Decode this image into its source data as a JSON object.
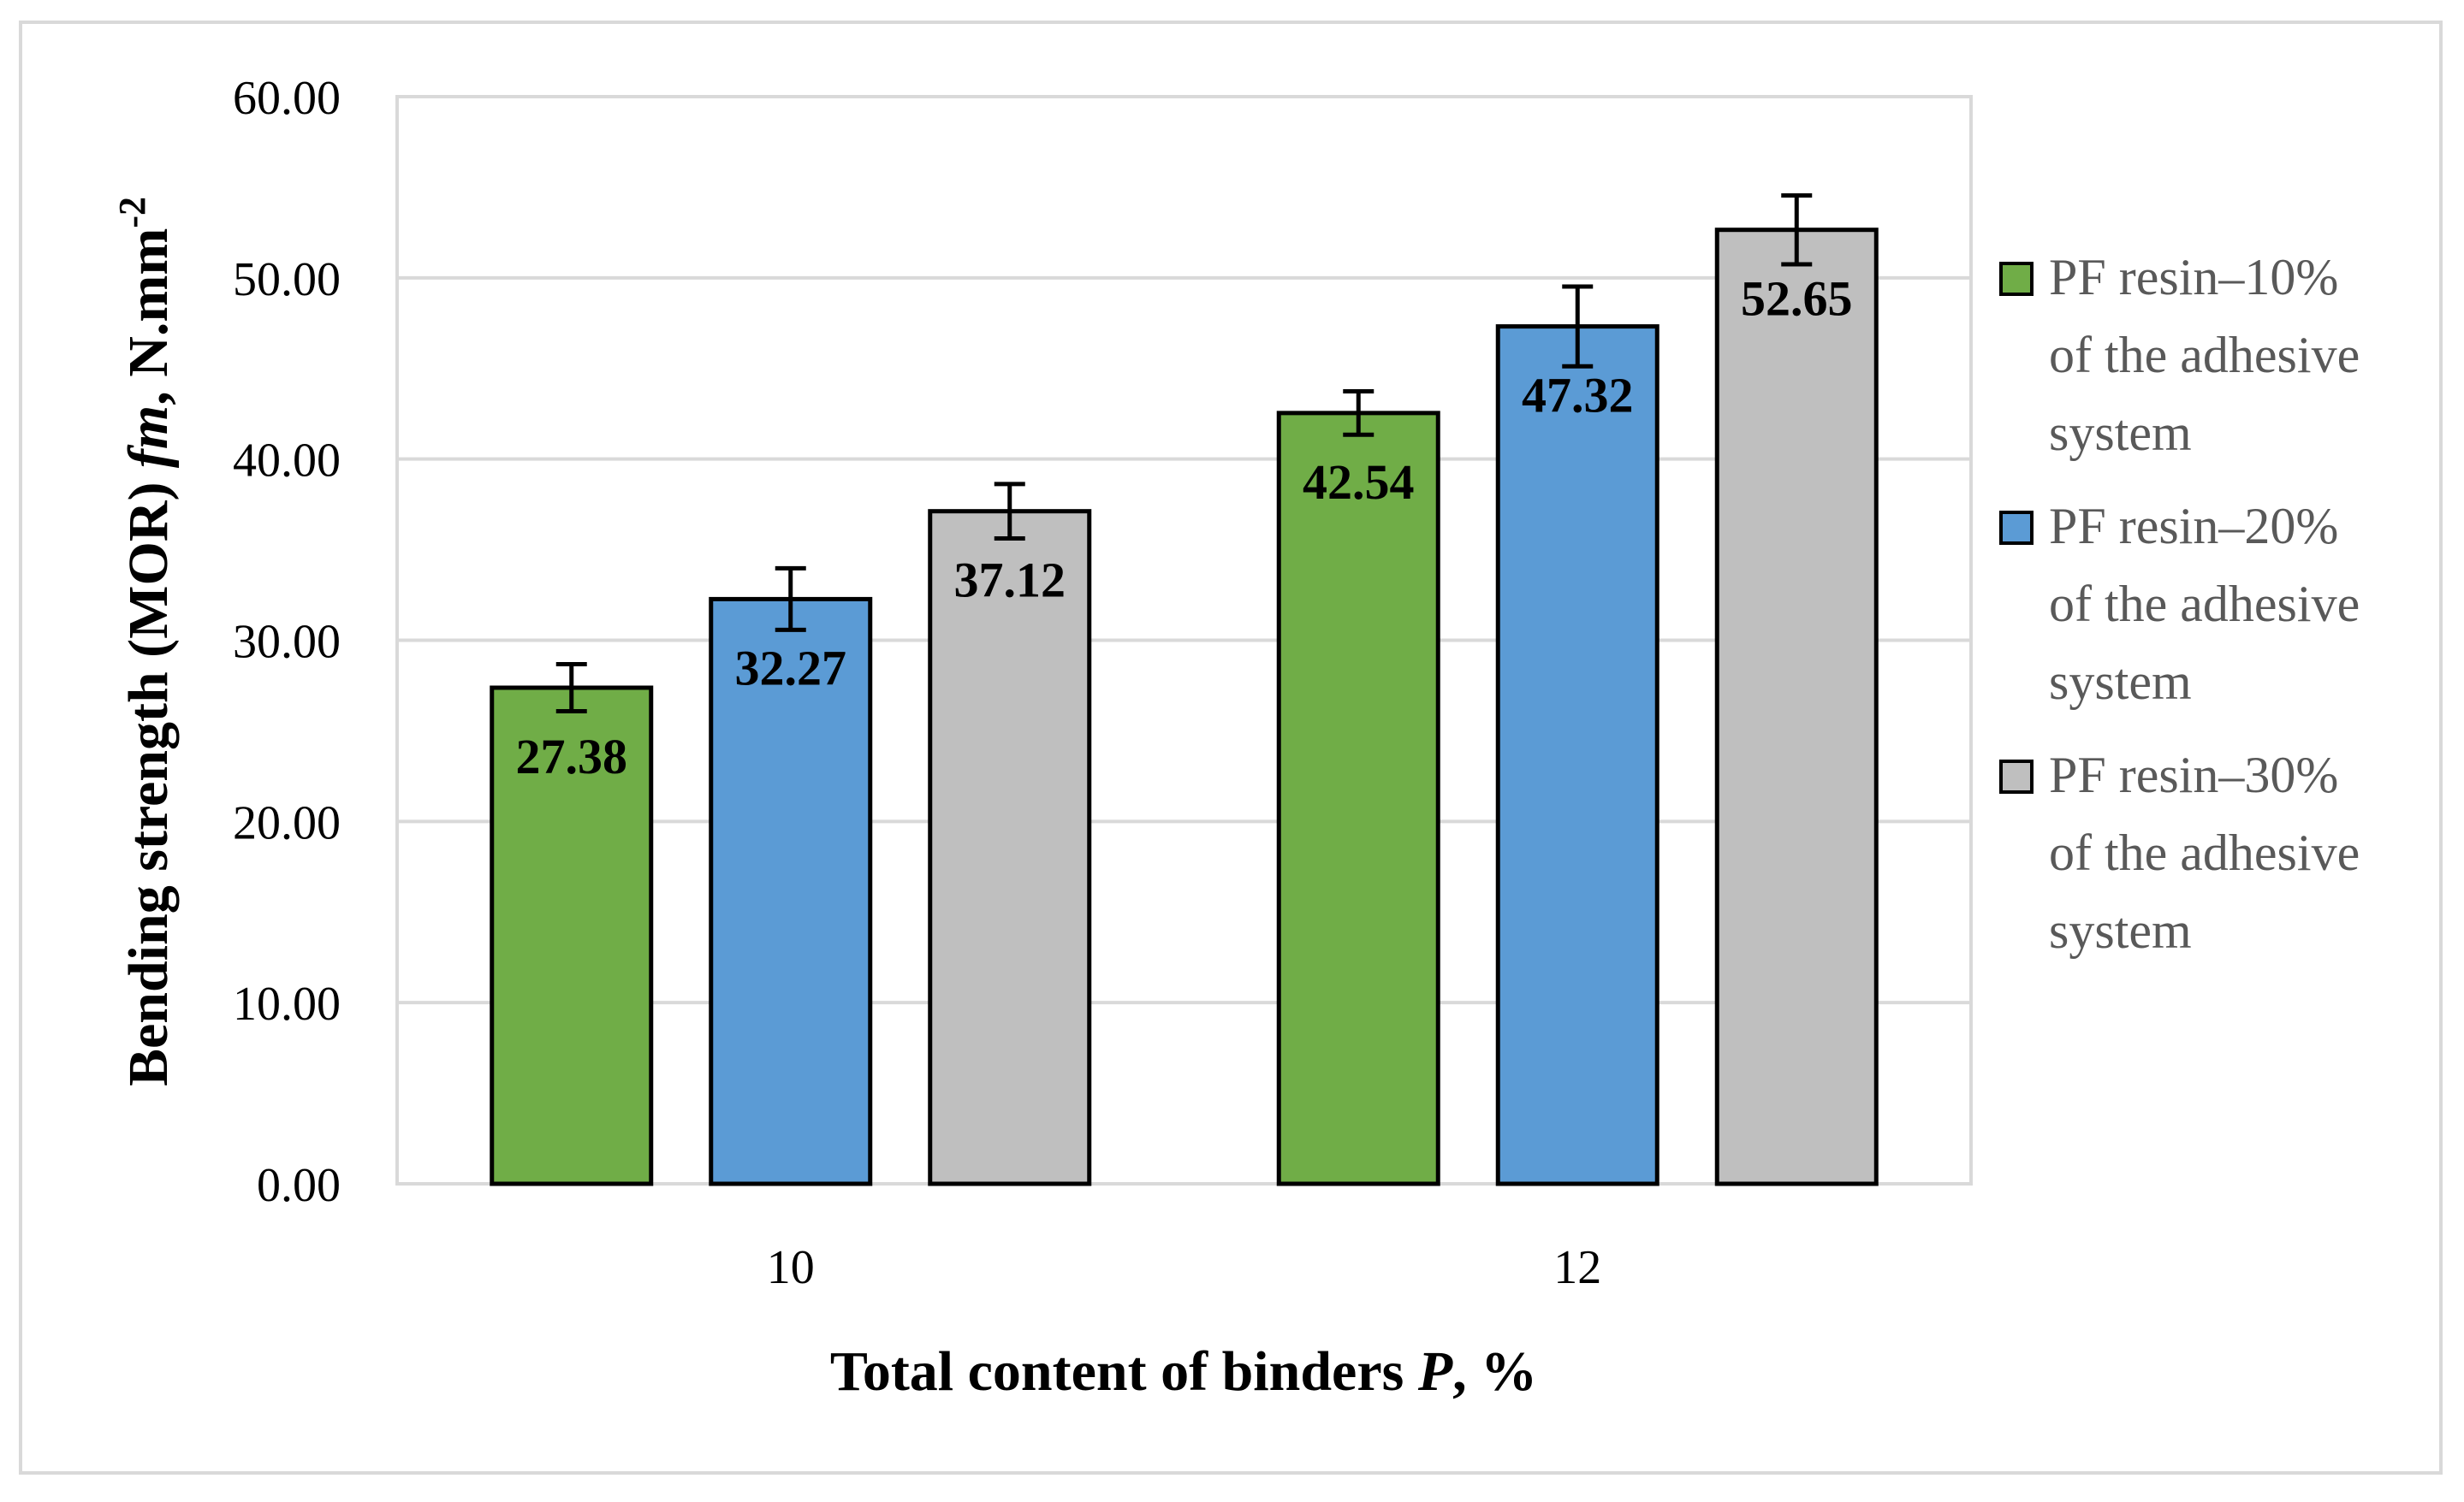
{
  "chart_data": {
    "type": "bar",
    "categories": [
      "10",
      "12"
    ],
    "series": [
      {
        "name": "PF resin–10% of the adhesive system",
        "values": [
          27.38,
          42.54
        ],
        "errors": [
          1.3,
          1.2
        ],
        "color": "#70ad47"
      },
      {
        "name": "PF resin–20% of the adhesive system",
        "values": [
          32.27,
          47.32
        ],
        "errors": [
          1.7,
          2.2
        ],
        "color": "#5b9bd5"
      },
      {
        "name": "PF resin–30% of the adhesive system",
        "values": [
          37.12,
          52.65
        ],
        "errors": [
          1.5,
          1.9
        ],
        "color": "#bfbfbf"
      }
    ],
    "ylim": [
      0,
      60
    ],
    "yticks": [
      "0.00",
      "10.00",
      "20.00",
      "30.00",
      "40.00",
      "50.00",
      "60.00"
    ],
    "ylabel": "Bending strength (MOR) fm, N.mm-2",
    "ylabel_parts": {
      "main": "Bending strength (MOR) ",
      "italic": "fm",
      "sep": ", N.mm",
      "sup": "-2"
    },
    "xlabel": "Total content of binders P, %",
    "xlabel_parts": {
      "main": "Total content of binders ",
      "italic": "P",
      "rest": ", %"
    },
    "grid": true,
    "legend": "right",
    "legend_lines": [
      [
        "PF resin–10%",
        "of the adhesive",
        "system"
      ],
      [
        "PF resin–20%",
        "of the adhesive",
        "system"
      ],
      [
        "PF resin–30%",
        "of the adhesive",
        "system"
      ]
    ]
  }
}
